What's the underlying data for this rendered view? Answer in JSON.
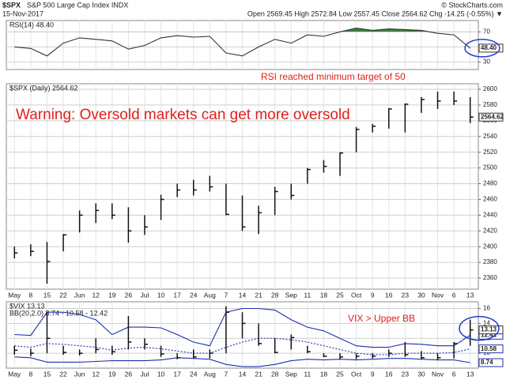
{
  "header": {
    "symbol": "$SPX",
    "name": "S&P 500 Large Cap Index INDX",
    "date": "15-Nov-2017",
    "copyright": "© StockCharts.com",
    "quote": "Open 2569.45 High 2572.84 Low 2557.45 Close 2564.62 Chg -14.25 (-0.55%) ▼"
  },
  "chart_data": [
    {
      "type": "line",
      "title": "RSI(14) 48.40",
      "color": "#333333",
      "fill_color": "#3d7f3d",
      "values": [
        50,
        48,
        38,
        55,
        62,
        60,
        58,
        47,
        52,
        62,
        65,
        63,
        64,
        42,
        38,
        50,
        60,
        55,
        66,
        64,
        70,
        75,
        72,
        74,
        73,
        72,
        68,
        66,
        48.4
      ],
      "value_labels": [
        null,
        null,
        null,
        null,
        null,
        null,
        null,
        null,
        null,
        null,
        null,
        null,
        null,
        null,
        null,
        null,
        null,
        null,
        null,
        null,
        null,
        null,
        null,
        null,
        null,
        null,
        null,
        null,
        "48.40"
      ],
      "ylim": [
        20,
        85
      ],
      "yticks": [
        30,
        50,
        70
      ],
      "grid": true,
      "annotation": "RSI reached minimum target of 50"
    },
    {
      "type": "ohlc",
      "title": "$SPX (Daily) 2564.62",
      "color": "#111111",
      "categories": [
        "May",
        "8",
        "15",
        "22",
        "Jun",
        "12",
        "19",
        "26",
        "Jul",
        "10",
        "17",
        "24",
        "Aug",
        "7",
        "14",
        "21",
        "28",
        "Sep",
        "11",
        "18",
        "25",
        "Oct",
        "9",
        "16",
        "23",
        "30",
        "Nov",
        "6",
        "13"
      ],
      "high": [
        2400,
        2403,
        2406,
        2416,
        2446,
        2455,
        2455,
        2450,
        2440,
        2466,
        2480,
        2485,
        2490,
        2480,
        2465,
        2452,
        2476,
        2480,
        2500,
        2510,
        2520,
        2552,
        2556,
        2576,
        2582,
        2590,
        2597,
        2597,
        2590
      ],
      "low": [
        2385,
        2388,
        2353,
        2394,
        2418,
        2430,
        2435,
        2405,
        2415,
        2434,
        2463,
        2465,
        2470,
        2440,
        2420,
        2416,
        2440,
        2460,
        2480,
        2494,
        2490,
        2520,
        2545,
        2550,
        2545,
        2570,
        2575,
        2580,
        2557
      ],
      "close": [
        2392,
        2394,
        2381,
        2415,
        2440,
        2446,
        2440,
        2420,
        2425,
        2460,
        2472,
        2472,
        2476,
        2441,
        2425,
        2443,
        2470,
        2465,
        2498,
        2502,
        2519,
        2549,
        2553,
        2575,
        2581,
        2587,
        2585,
        2585,
        2564.62
      ],
      "value_labels": [
        null,
        null,
        null,
        null,
        null,
        null,
        null,
        null,
        null,
        null,
        null,
        null,
        null,
        null,
        null,
        null,
        null,
        null,
        null,
        null,
        null,
        null,
        null,
        null,
        null,
        null,
        null,
        null,
        "2564.62"
      ],
      "ylim": [
        2346,
        2607
      ],
      "yticks": [
        2360,
        2380,
        2400,
        2420,
        2440,
        2460,
        2480,
        2500,
        2520,
        2540,
        2560,
        2580,
        2600
      ],
      "grid": true,
      "annotation": "Warning: Oversold markets can get more oversold"
    },
    {
      "type": "ohlc_bands",
      "title": "$VIX 13.13",
      "subtitle": "BB(20,2.0) 8.74 - 10.58 - 12.42",
      "color": "#111111",
      "band_color": "#1f2fb0",
      "categories": [
        "May",
        "8",
        "15",
        "22",
        "Jun",
        "12",
        "19",
        "26",
        "Jul",
        "10",
        "17",
        "24",
        "Aug",
        "7",
        "14",
        "21",
        "28",
        "Sep",
        "11",
        "18",
        "25",
        "Oct",
        "9",
        "16",
        "23",
        "30",
        "Nov",
        "6",
        "13"
      ],
      "high": [
        11,
        10.6,
        15.5,
        11,
        10.5,
        12,
        11,
        15,
        12,
        11,
        10,
        10.5,
        10.5,
        16.3,
        15.5,
        14,
        12,
        12.5,
        11,
        10,
        10,
        10,
        10,
        10.5,
        11.5,
        10.3,
        10,
        11.5,
        14.5
      ],
      "low": [
        9.8,
        9.6,
        10,
        9.8,
        9.7,
        10,
        9.8,
        10.5,
        10.5,
        9.5,
        9.2,
        9.3,
        9.3,
        10,
        12,
        11,
        10,
        10.5,
        10,
        9.5,
        9.2,
        9.2,
        9.3,
        9.5,
        9.5,
        9.2,
        9.1,
        9.3,
        11
      ],
      "close": [
        10.4,
        10,
        12,
        10.1,
        10,
        10.5,
        10.2,
        11.5,
        11.2,
        9.9,
        9.4,
        9.5,
        10,
        15.5,
        14,
        11.3,
        10.1,
        12.1,
        10.2,
        9.6,
        9.5,
        9.6,
        9.6,
        10,
        9.8,
        9.4,
        9.4,
        11.3,
        13.13
      ],
      "upper": [
        12.5,
        12.4,
        15.5,
        15.5,
        15.2,
        14.5,
        12.5,
        13.5,
        13.5,
        13.4,
        12.5,
        11.5,
        11,
        15.5,
        16,
        16,
        15.8,
        14.5,
        13.5,
        13,
        12,
        11,
        10.8,
        10.8,
        11.3,
        11.2,
        11,
        11,
        12.42
      ],
      "middle": [
        11,
        10.8,
        11.3,
        11.2,
        11,
        10.8,
        10.4,
        10.7,
        10.8,
        10.6,
        10.3,
        10,
        10,
        10.8,
        11.5,
        12,
        12,
        11.8,
        11.5,
        11,
        10.5,
        10,
        9.8,
        9.8,
        10,
        10,
        10,
        10.1,
        10.58
      ],
      "lower": [
        9.5,
        9.4,
        8.8,
        8.8,
        8.8,
        8.9,
        9,
        9,
        9,
        9.1,
        9.4,
        9.3,
        9.2,
        8.5,
        8.2,
        8.2,
        8.5,
        9,
        9.2,
        9.1,
        9.2,
        9.1,
        9.2,
        9.3,
        9.3,
        9.2,
        9.1,
        9.1,
        8.74
      ],
      "ylim": [
        8,
        16.9
      ],
      "yticks": [
        10,
        12,
        14,
        16
      ],
      "grid": true,
      "annotation": "VIX > Upper BB"
    }
  ]
}
